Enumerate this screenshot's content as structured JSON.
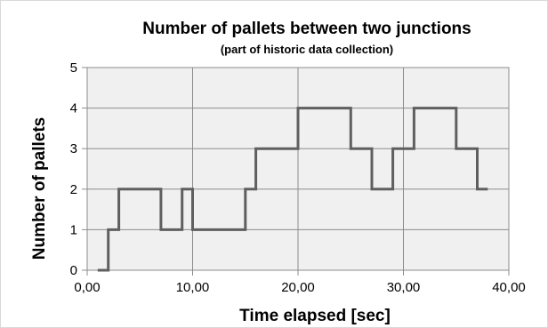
{
  "chart_data": {
    "type": "line",
    "step": true,
    "title": "Number of pallets between two junctions",
    "subtitle": "(part of historic data collection)",
    "xlabel": "Time elapsed [sec]",
    "ylabel": "Number of pallets",
    "xlim": [
      0,
      40
    ],
    "ylim": [
      0,
      5
    ],
    "xticks": [
      0,
      10,
      20,
      30,
      40
    ],
    "xtick_labels": [
      "0,00",
      "10,00",
      "20,00",
      "30,00",
      "40,00"
    ],
    "yticks": [
      0,
      1,
      2,
      3,
      4,
      5
    ],
    "ytick_labels": [
      "0",
      "1",
      "2",
      "3",
      "4",
      "5"
    ],
    "grid": true,
    "plot_background": "#f0f0f0",
    "grid_color": "#8c8c8c",
    "series": [
      {
        "color": "#5f5f5f",
        "x": [
          1.0,
          2.0,
          2.0,
          3.0,
          3.0,
          7.0,
          7.0,
          9.0,
          9.0,
          10.0,
          10.0,
          15.0,
          15.0,
          16.0,
          16.0,
          20.0,
          20.0,
          25.0,
          25.0,
          27.0,
          27.0,
          29.0,
          29.0,
          31.0,
          31.0,
          35.0,
          35.0,
          37.0,
          37.0,
          38.0
        ],
        "y": [
          0,
          0,
          1,
          1,
          2,
          2,
          1,
          1,
          2,
          2,
          1,
          1,
          2,
          2,
          3,
          3,
          4,
          4,
          3,
          3,
          2,
          2,
          3,
          3,
          4,
          4,
          3,
          3,
          2,
          2
        ]
      }
    ]
  }
}
